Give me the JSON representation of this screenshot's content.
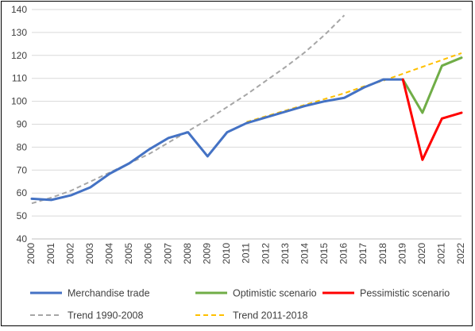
{
  "chart_data": {
    "type": "line",
    "title": "",
    "xlabel": "",
    "ylabel": "",
    "ylim": [
      40,
      140
    ],
    "yticks": [
      40,
      50,
      60,
      70,
      80,
      90,
      100,
      110,
      120,
      130,
      140
    ],
    "grid": "horizontal",
    "legend_position": "bottom",
    "categories": [
      "2000",
      "2001",
      "2002",
      "2003",
      "2004",
      "2005",
      "2006",
      "2007",
      "2008",
      "2009",
      "2010",
      "2011",
      "2012",
      "2013",
      "2014",
      "2015",
      "2016",
      "2017",
      "2018",
      "2019",
      "2020",
      "2021",
      "2022"
    ],
    "series": [
      {
        "name": "Merchandise trade",
        "color": "#4472C4",
        "style": "solid",
        "points": [
          [
            2000,
            57.5
          ],
          [
            2001,
            57
          ],
          [
            2002,
            59
          ],
          [
            2003,
            62.5
          ],
          [
            2004,
            68.5
          ],
          [
            2005,
            73
          ],
          [
            2006,
            79
          ],
          [
            2007,
            84
          ],
          [
            2008,
            86.5
          ],
          [
            2009,
            76
          ],
          [
            2010,
            86.5
          ],
          [
            2011,
            90.5
          ],
          [
            2012,
            93
          ],
          [
            2013,
            95.5
          ],
          [
            2014,
            98
          ],
          [
            2015,
            100
          ],
          [
            2016,
            101.5
          ],
          [
            2017,
            106
          ],
          [
            2018,
            109.5
          ],
          [
            2019,
            109.5
          ]
        ]
      },
      {
        "name": "Optimistic scenario",
        "color": "#70AD47",
        "style": "solid",
        "points": [
          [
            2019,
            109.5
          ],
          [
            2020,
            95
          ],
          [
            2021,
            115.5
          ],
          [
            2022,
            119
          ]
        ]
      },
      {
        "name": "Pessimistic scenario",
        "color": "#FF0000",
        "style": "solid",
        "points": [
          [
            2019,
            109.5
          ],
          [
            2020,
            74.5
          ],
          [
            2021,
            92.5
          ],
          [
            2022,
            95
          ]
        ]
      },
      {
        "name": "Trend 1990-2008",
        "color": "#A6A6A6",
        "style": "dashed",
        "points": [
          [
            2000,
            55.5
          ],
          [
            2001,
            58
          ],
          [
            2002,
            61
          ],
          [
            2003,
            65
          ],
          [
            2004,
            69
          ],
          [
            2005,
            73
          ],
          [
            2006,
            77
          ],
          [
            2007,
            82
          ],
          [
            2008,
            87
          ],
          [
            2009,
            92
          ],
          [
            2010,
            97.5
          ],
          [
            2011,
            103
          ],
          [
            2012,
            109
          ],
          [
            2013,
            115
          ],
          [
            2014,
            121.5
          ],
          [
            2015,
            129
          ],
          [
            2016,
            137.5
          ]
        ]
      },
      {
        "name": "Trend 2011-2018",
        "color": "#FFC000",
        "style": "dashed",
        "points": [
          [
            2011,
            91
          ],
          [
            2012,
            93.5
          ],
          [
            2013,
            96
          ],
          [
            2014,
            98.5
          ],
          [
            2015,
            101
          ],
          [
            2016,
            103.5
          ],
          [
            2017,
            106.5
          ],
          [
            2018,
            109
          ],
          [
            2019,
            112
          ],
          [
            2020,
            115
          ],
          [
            2021,
            118
          ],
          [
            2022,
            121
          ]
        ]
      }
    ]
  }
}
